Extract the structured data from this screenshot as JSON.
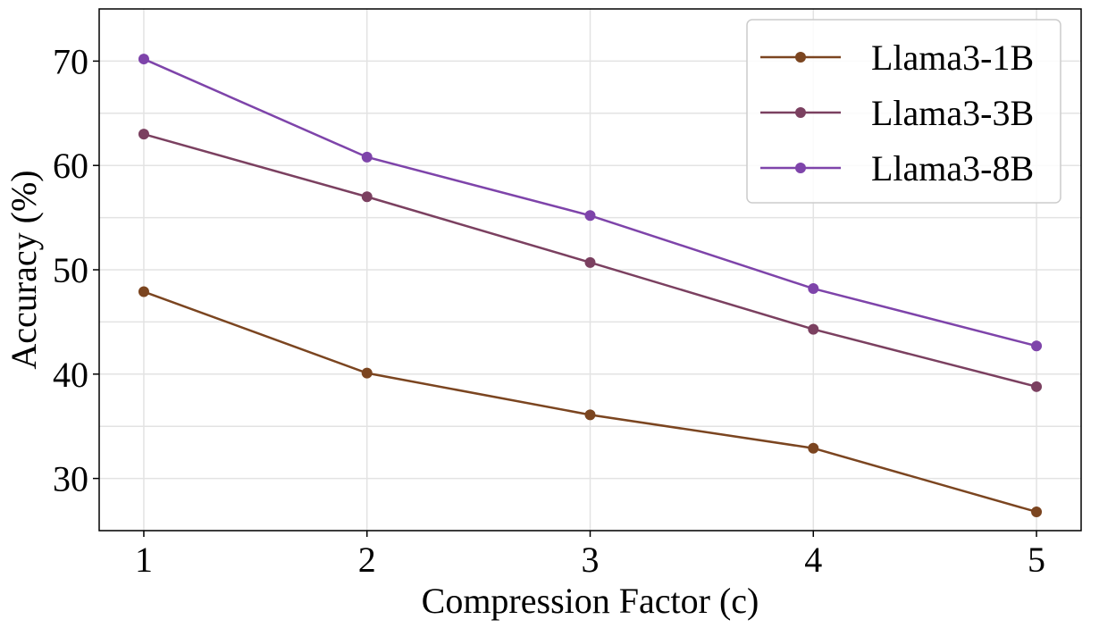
{
  "chart_data": {
    "type": "line",
    "title": "",
    "xlabel": "Compression Factor (c)",
    "ylabel": "Accuracy (%)",
    "x": [
      1,
      2,
      3,
      4,
      5
    ],
    "x_ticks": [
      "1",
      "2",
      "3",
      "4",
      "5"
    ],
    "y_ticks": [
      30,
      40,
      50,
      60,
      70
    ],
    "xlim": [
      0.8,
      5.2
    ],
    "ylim": [
      25,
      75
    ],
    "grid": true,
    "legend_position": "top-right",
    "series": [
      {
        "name": "Llama3-1B",
        "color": "#7b4520",
        "values": [
          47.9,
          40.1,
          36.1,
          32.9,
          26.8
        ]
      },
      {
        "name": "Llama3-3B",
        "color": "#7b4060",
        "values": [
          63.0,
          57.0,
          50.7,
          44.3,
          38.8
        ]
      },
      {
        "name": "Llama3-8B",
        "color": "#7e44aa",
        "values": [
          70.2,
          60.8,
          55.2,
          48.2,
          42.7
        ]
      }
    ]
  }
}
